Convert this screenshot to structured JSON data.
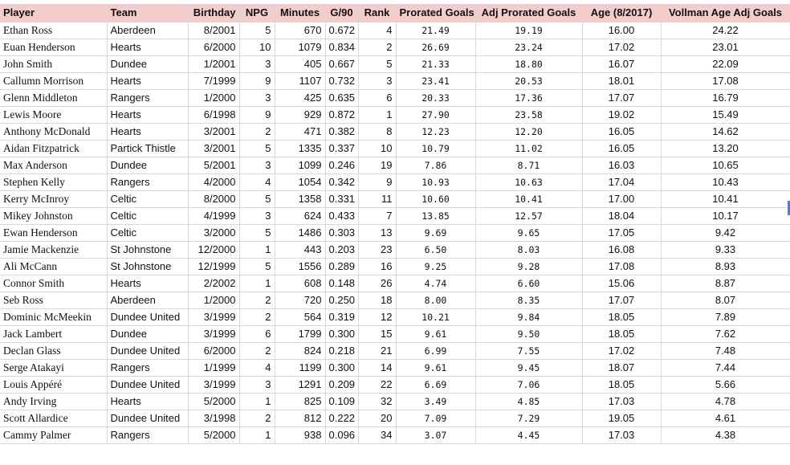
{
  "headers": {
    "player": "Player",
    "team": "Team",
    "birthday": "Birthday",
    "npg": "NPG",
    "minutes": "Minutes",
    "g90": "G/90",
    "rank": "Rank",
    "prorated": "Prorated Goals",
    "adj_prorated": "Adj Prorated Goals",
    "age": "Age (8/2017)",
    "vollman": "Vollman Age Adj Goals"
  },
  "rows": [
    {
      "player": "Ethan Ross",
      "team": "Aberdeen",
      "birthday": "8/2001",
      "npg": "5",
      "minutes": "670",
      "g90": "0.672",
      "rank": "4",
      "prorated": "21.49",
      "adj_prorated": "19.19",
      "age": "16.00",
      "vollman": "24.22"
    },
    {
      "player": "Euan Henderson",
      "team": "Hearts",
      "birthday": "6/2000",
      "npg": "10",
      "minutes": "1079",
      "g90": "0.834",
      "rank": "2",
      "prorated": "26.69",
      "adj_prorated": "23.24",
      "age": "17.02",
      "vollman": "23.01"
    },
    {
      "player": "John Smith",
      "team": "Dundee",
      "birthday": "1/2001",
      "npg": "3",
      "minutes": "405",
      "g90": "0.667",
      "rank": "5",
      "prorated": "21.33",
      "adj_prorated": "18.80",
      "age": "16.07",
      "vollman": "22.09"
    },
    {
      "player": "Callumn Morrison",
      "team": "Hearts",
      "birthday": "7/1999",
      "npg": "9",
      "minutes": "1107",
      "g90": "0.732",
      "rank": "3",
      "prorated": "23.41",
      "adj_prorated": "20.53",
      "age": "18.01",
      "vollman": "17.08"
    },
    {
      "player": "Glenn Middleton",
      "team": "Rangers",
      "birthday": "1/2000",
      "npg": "3",
      "minutes": "425",
      "g90": "0.635",
      "rank": "6",
      "prorated": "20.33",
      "adj_prorated": "17.36",
      "age": "17.07",
      "vollman": "16.79"
    },
    {
      "player": "Lewis Moore",
      "team": "Hearts",
      "birthday": "6/1998",
      "npg": "9",
      "minutes": "929",
      "g90": "0.872",
      "rank": "1",
      "prorated": "27.90",
      "adj_prorated": "23.58",
      "age": "19.02",
      "vollman": "15.49"
    },
    {
      "player": "Anthony McDonald",
      "team": "Hearts",
      "birthday": "3/2001",
      "npg": "2",
      "minutes": "471",
      "g90": "0.382",
      "rank": "8",
      "prorated": "12.23",
      "adj_prorated": "12.20",
      "age": "16.05",
      "vollman": "14.62"
    },
    {
      "player": "Aidan Fitzpatrick",
      "team": "Partick Thistle",
      "birthday": "3/2001",
      "npg": "5",
      "minutes": "1335",
      "g90": "0.337",
      "rank": "10",
      "prorated": "10.79",
      "adj_prorated": "11.02",
      "age": "16.05",
      "vollman": "13.20"
    },
    {
      "player": "Max Anderson",
      "team": "Dundee",
      "birthday": "5/2001",
      "npg": "3",
      "minutes": "1099",
      "g90": "0.246",
      "rank": "19",
      "prorated": "7.86",
      "adj_prorated": "8.71",
      "age": "16.03",
      "vollman": "10.65"
    },
    {
      "player": "Stephen Kelly",
      "team": "Rangers",
      "birthday": "4/2000",
      "npg": "4",
      "minutes": "1054",
      "g90": "0.342",
      "rank": "9",
      "prorated": "10.93",
      "adj_prorated": "10.63",
      "age": "17.04",
      "vollman": "10.43"
    },
    {
      "player": "Kerry McInroy",
      "team": "Celtic",
      "birthday": "8/2000",
      "npg": "5",
      "minutes": "1358",
      "g90": "0.331",
      "rank": "11",
      "prorated": "10.60",
      "adj_prorated": "10.41",
      "age": "17.00",
      "vollman": "10.41"
    },
    {
      "player": "Mikey Johnston",
      "team": "Celtic",
      "birthday": "4/1999",
      "npg": "3",
      "minutes": "624",
      "g90": "0.433",
      "rank": "7",
      "prorated": "13.85",
      "adj_prorated": "12.57",
      "age": "18.04",
      "vollman": "10.17"
    },
    {
      "player": "Ewan Henderson",
      "team": "Celtic",
      "birthday": "3/2000",
      "npg": "5",
      "minutes": "1486",
      "g90": "0.303",
      "rank": "13",
      "prorated": "9.69",
      "adj_prorated": "9.65",
      "age": "17.05",
      "vollman": "9.42"
    },
    {
      "player": "Jamie Mackenzie",
      "team": "St Johnstone",
      "birthday": "12/2000",
      "npg": "1",
      "minutes": "443",
      "g90": "0.203",
      "rank": "23",
      "prorated": "6.50",
      "adj_prorated": "8.03",
      "age": "16.08",
      "vollman": "9.33"
    },
    {
      "player": "Ali McCann",
      "team": "St Johnstone",
      "birthday": "12/1999",
      "npg": "5",
      "minutes": "1556",
      "g90": "0.289",
      "rank": "16",
      "prorated": "9.25",
      "adj_prorated": "9.28",
      "age": "17.08",
      "vollman": "8.93"
    },
    {
      "player": "Connor Smith",
      "team": "Hearts",
      "birthday": "2/2002",
      "npg": "1",
      "minutes": "608",
      "g90": "0.148",
      "rank": "26",
      "prorated": "4.74",
      "adj_prorated": "6.60",
      "age": "15.06",
      "vollman": "8.87"
    },
    {
      "player": "Seb Ross",
      "team": "Aberdeen",
      "birthday": "1/2000",
      "npg": "2",
      "minutes": "720",
      "g90": "0.250",
      "rank": "18",
      "prorated": "8.00",
      "adj_prorated": "8.35",
      "age": "17.07",
      "vollman": "8.07"
    },
    {
      "player": "Dominic McMeekin",
      "team": "Dundee United",
      "birthday": "3/1999",
      "npg": "2",
      "minutes": "564",
      "g90": "0.319",
      "rank": "12",
      "prorated": "10.21",
      "adj_prorated": "9.84",
      "age": "18.05",
      "vollman": "7.89"
    },
    {
      "player": "Jack Lambert",
      "team": "Dundee",
      "birthday": "3/1999",
      "npg": "6",
      "minutes": "1799",
      "g90": "0.300",
      "rank": "15",
      "prorated": "9.61",
      "adj_prorated": "9.50",
      "age": "18.05",
      "vollman": "7.62"
    },
    {
      "player": "Declan Glass",
      "team": "Dundee United",
      "birthday": "6/2000",
      "npg": "2",
      "minutes": "824",
      "g90": "0.218",
      "rank": "21",
      "prorated": "6.99",
      "adj_prorated": "7.55",
      "age": "17.02",
      "vollman": "7.48"
    },
    {
      "player": "Serge Atakayi",
      "team": "Rangers",
      "birthday": "1/1999",
      "npg": "4",
      "minutes": "1199",
      "g90": "0.300",
      "rank": "14",
      "prorated": "9.61",
      "adj_prorated": "9.45",
      "age": "18.07",
      "vollman": "7.44"
    },
    {
      "player": "Louis Appéré",
      "team": "Dundee United",
      "birthday": "3/1999",
      "npg": "3",
      "minutes": "1291",
      "g90": "0.209",
      "rank": "22",
      "prorated": "6.69",
      "adj_prorated": "7.06",
      "age": "18.05",
      "vollman": "5.66"
    },
    {
      "player": "Andy Irving",
      "team": "Hearts",
      "birthday": "5/2000",
      "npg": "1",
      "minutes": "825",
      "g90": "0.109",
      "rank": "32",
      "prorated": "3.49",
      "adj_prorated": "4.85",
      "age": "17.03",
      "vollman": "4.78"
    },
    {
      "player": "Scott Allardice",
      "team": "Dundee United",
      "birthday": "3/1998",
      "npg": "2",
      "minutes": "812",
      "g90": "0.222",
      "rank": "20",
      "prorated": "7.09",
      "adj_prorated": "7.29",
      "age": "19.05",
      "vollman": "4.61"
    },
    {
      "player": "Cammy Palmer",
      "team": "Rangers",
      "birthday": "5/2000",
      "npg": "1",
      "minutes": "938",
      "g90": "0.096",
      "rank": "34",
      "prorated": "3.07",
      "adj_prorated": "4.45",
      "age": "17.03",
      "vollman": "4.38"
    }
  ]
}
